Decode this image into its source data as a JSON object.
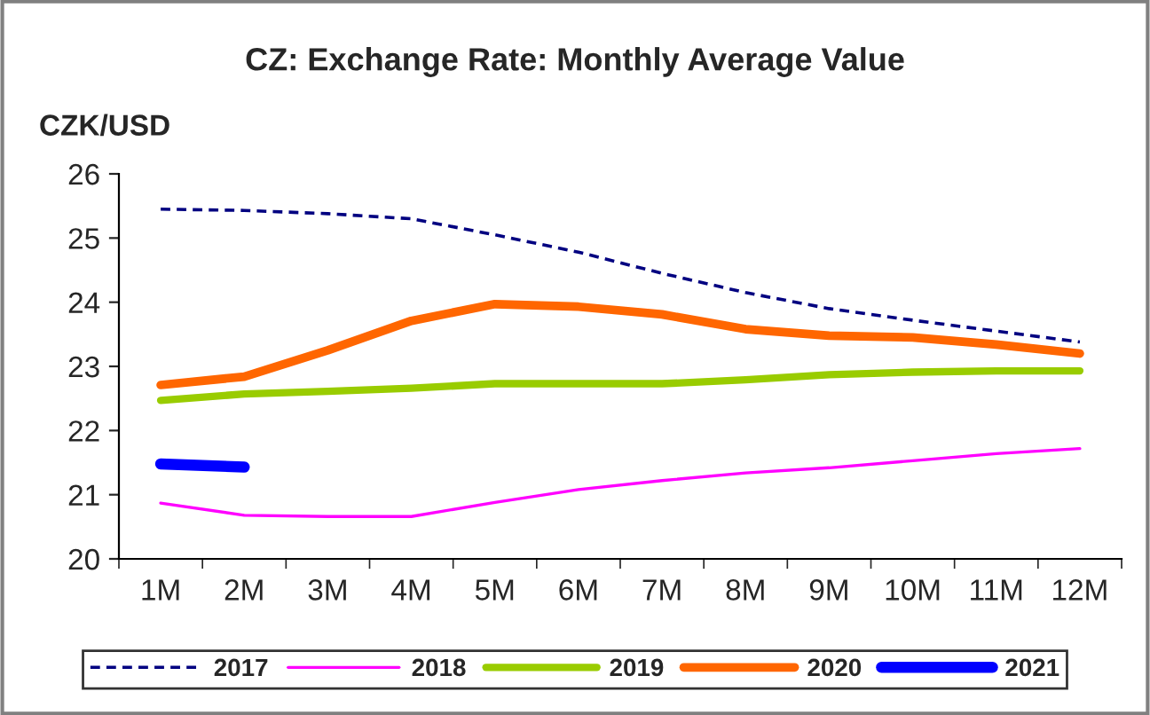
{
  "chart_data": {
    "type": "line",
    "title": "CZ: Exchange Rate: Monthly Average Value",
    "ylabel": "CZK/USD",
    "categories": [
      "1M",
      "2M",
      "3M",
      "4M",
      "5M",
      "6M",
      "7M",
      "8M",
      "9M",
      "10M",
      "11M",
      "12M"
    ],
    "series": [
      {
        "name": "2017",
        "color": "#000080",
        "line_style": "dashed",
        "values": [
          25.45,
          25.43,
          25.38,
          25.3,
          25.05,
          24.78,
          24.45,
          24.15,
          23.9,
          23.72,
          23.55,
          23.38
        ]
      },
      {
        "name": "2018",
        "color": "#ff00ff",
        "values": [
          20.87,
          20.68,
          20.66,
          20.66,
          20.88,
          21.08,
          21.22,
          21.34,
          21.42,
          21.53,
          21.64,
          21.72
        ]
      },
      {
        "name": "2019",
        "color": "#99cc00",
        "values": [
          22.47,
          22.57,
          22.61,
          22.66,
          22.73,
          22.73,
          22.73,
          22.79,
          22.87,
          22.91,
          22.93,
          22.93
        ]
      },
      {
        "name": "2020",
        "color": "#ff6600",
        "values": [
          22.71,
          22.84,
          23.25,
          23.71,
          23.97,
          23.93,
          23.81,
          23.58,
          23.48,
          23.45,
          23.34,
          23.2
        ]
      },
      {
        "name": "2021",
        "color": "#0000ff",
        "values": [
          21.48,
          21.43,
          null,
          null,
          null,
          null,
          null,
          null,
          null,
          null,
          null,
          null
        ]
      }
    ],
    "ylim": [
      20,
      26
    ],
    "yticks": [
      20,
      21,
      22,
      23,
      24,
      25,
      26
    ],
    "grid": false,
    "legend": "bottom",
    "marker": "none",
    "line_style": "solid"
  }
}
